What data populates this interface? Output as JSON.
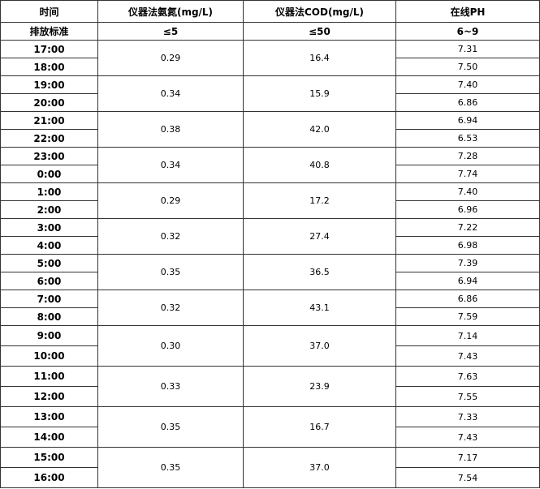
{
  "table": {
    "header": [
      "时间",
      "仪器法氨氮(mg/L)",
      "仪器法COD(mg/L)",
      "在线PH"
    ],
    "standard": [
      "排放标准",
      "≤5",
      "≤50",
      "6~9"
    ],
    "groups": [
      {
        "times": [
          "17:00",
          "18:00"
        ],
        "ammonia": "0.29",
        "cod": "16.4",
        "ph": [
          "7.31",
          "7.50"
        ]
      },
      {
        "times": [
          "19:00",
          "20:00"
        ],
        "ammonia": "0.34",
        "cod": "15.9",
        "ph": [
          "7.40",
          "6.86"
        ]
      },
      {
        "times": [
          "21:00",
          "22:00"
        ],
        "ammonia": "0.38",
        "cod": "42.0",
        "ph": [
          "6.94",
          "6.53"
        ]
      },
      {
        "times": [
          "23:00",
          "0:00"
        ],
        "ammonia": "0.34",
        "cod": "40.8",
        "ph": [
          "7.28",
          "7.74"
        ]
      },
      {
        "times": [
          "1:00",
          "2:00"
        ],
        "ammonia": "0.29",
        "cod": "17.2",
        "ph": [
          "7.40",
          "6.96"
        ]
      },
      {
        "times": [
          "3:00",
          "4:00"
        ],
        "ammonia": "0.32",
        "cod": "27.4",
        "ph": [
          "7.22",
          "6.98"
        ]
      },
      {
        "times": [
          "5:00",
          "6:00"
        ],
        "ammonia": "0.35",
        "cod": "36.5",
        "ph": [
          "7.39",
          "6.94"
        ]
      },
      {
        "times": [
          "7:00",
          "8:00"
        ],
        "ammonia": "0.32",
        "cod": "43.1",
        "ph": [
          "6.86",
          "7.59"
        ]
      },
      {
        "times": [
          "9:00",
          "10:00"
        ],
        "ammonia": "0.30",
        "cod": "37.0",
        "ph": [
          "7.14",
          "7.43"
        ]
      },
      {
        "times": [
          "11:00",
          "12:00"
        ],
        "ammonia": "0.33",
        "cod": "23.9",
        "ph": [
          "7.63",
          "7.55"
        ]
      },
      {
        "times": [
          "13:00",
          "14:00"
        ],
        "ammonia": "0.35",
        "cod": "16.7",
        "ph": [
          "7.33",
          "7.43"
        ]
      },
      {
        "times": [
          "15:00",
          "16:00"
        ],
        "ammonia": "0.35",
        "cod": "37.0",
        "ph": [
          "7.17",
          "7.54"
        ]
      }
    ]
  }
}
